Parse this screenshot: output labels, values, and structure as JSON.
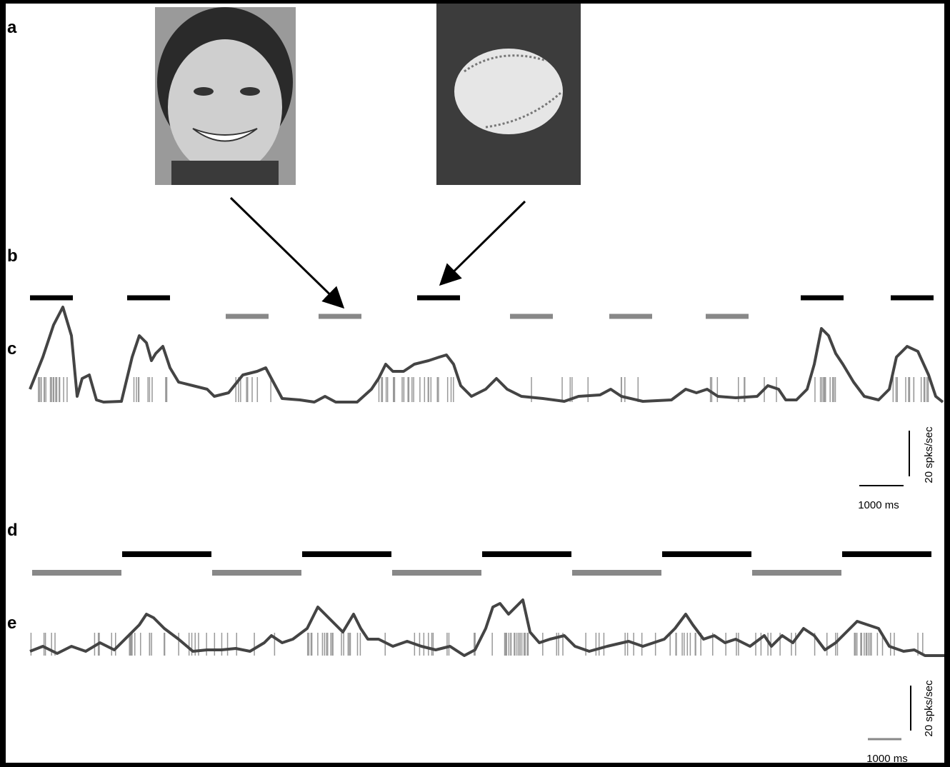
{
  "panels": {
    "a": "a",
    "b": "b",
    "c": "c",
    "d": "d",
    "e": "e"
  },
  "scale_c": {
    "y": "20 spks/sec",
    "x": "1000 ms"
  },
  "scale_e": {
    "y": "20 spks/sec",
    "x": "1000 ms"
  }
}
